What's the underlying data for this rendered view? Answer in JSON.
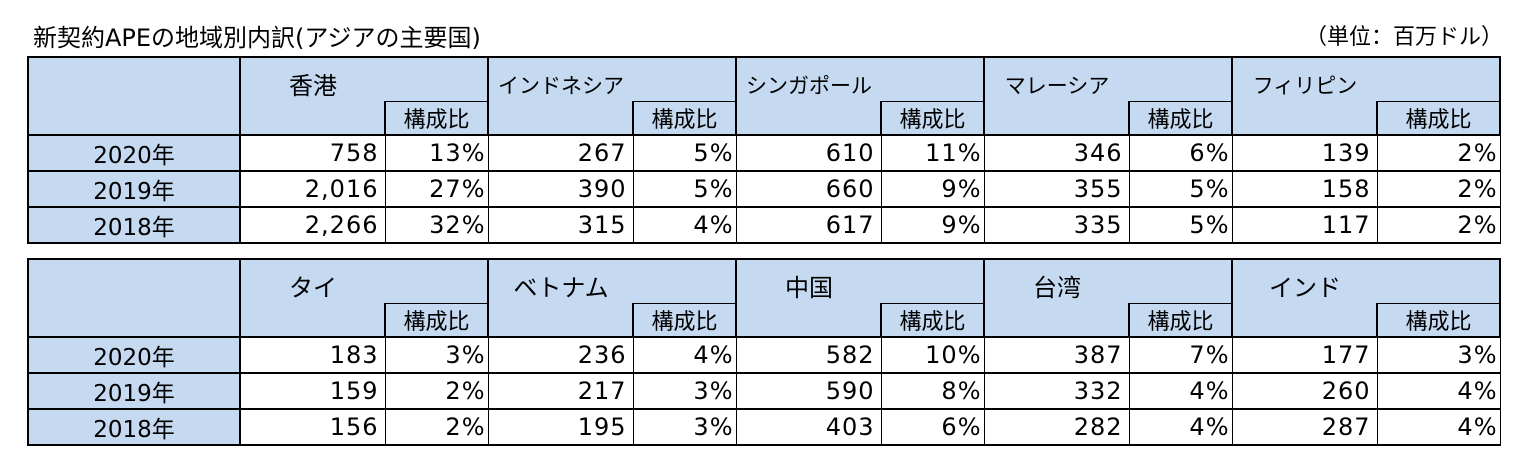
{
  "title": "新契約APEの地域別内訳(アジアの主要国)",
  "unit": "（単位：百万ドル）",
  "tables": [
    {
      "countries": [
        {
          "name": "香港",
          "sub": "構成比",
          "size": "large"
        },
        {
          "name": "インドネシア",
          "sub": "構成比",
          "size": "small"
        },
        {
          "name": "シンガポール",
          "sub": "構成比",
          "size": "small"
        },
        {
          "name": "マレーシア",
          "sub": "構成比",
          "size": "small"
        },
        {
          "name": "フィリピン",
          "sub": "構成比",
          "size": "small"
        }
      ],
      "rows": [
        {
          "year": "2020年",
          "cells": [
            "758",
            "13%",
            "267",
            "5%",
            "610",
            "11%",
            "346",
            "6%",
            "139",
            "2%"
          ]
        },
        {
          "year": "2019年",
          "cells": [
            "2,016",
            "27%",
            "390",
            "5%",
            "660",
            "9%",
            "355",
            "5%",
            "158",
            "2%"
          ]
        },
        {
          "year": "2018年",
          "cells": [
            "2,266",
            "32%",
            "315",
            "4%",
            "617",
            "9%",
            "335",
            "5%",
            "117",
            "2%"
          ]
        }
      ]
    },
    {
      "countries": [
        {
          "name": "タイ",
          "sub": "構成比",
          "size": "large"
        },
        {
          "name": "ベトナム",
          "sub": "構成比",
          "size": "large"
        },
        {
          "name": "中国",
          "sub": "構成比",
          "size": "large"
        },
        {
          "name": "台湾",
          "sub": "構成比",
          "size": "large"
        },
        {
          "name": "インド",
          "sub": "構成比",
          "size": "large"
        }
      ],
      "rows": [
        {
          "year": "2020年",
          "cells": [
            "183",
            "3%",
            "236",
            "4%",
            "582",
            "10%",
            "387",
            "7%",
            "177",
            "3%"
          ]
        },
        {
          "year": "2019年",
          "cells": [
            "159",
            "2%",
            "217",
            "3%",
            "590",
            "8%",
            "332",
            "4%",
            "260",
            "4%"
          ]
        },
        {
          "year": "2018年",
          "cells": [
            "156",
            "2%",
            "195",
            "3%",
            "403",
            "6%",
            "282",
            "4%",
            "287",
            "4%"
          ]
        }
      ]
    }
  ]
}
